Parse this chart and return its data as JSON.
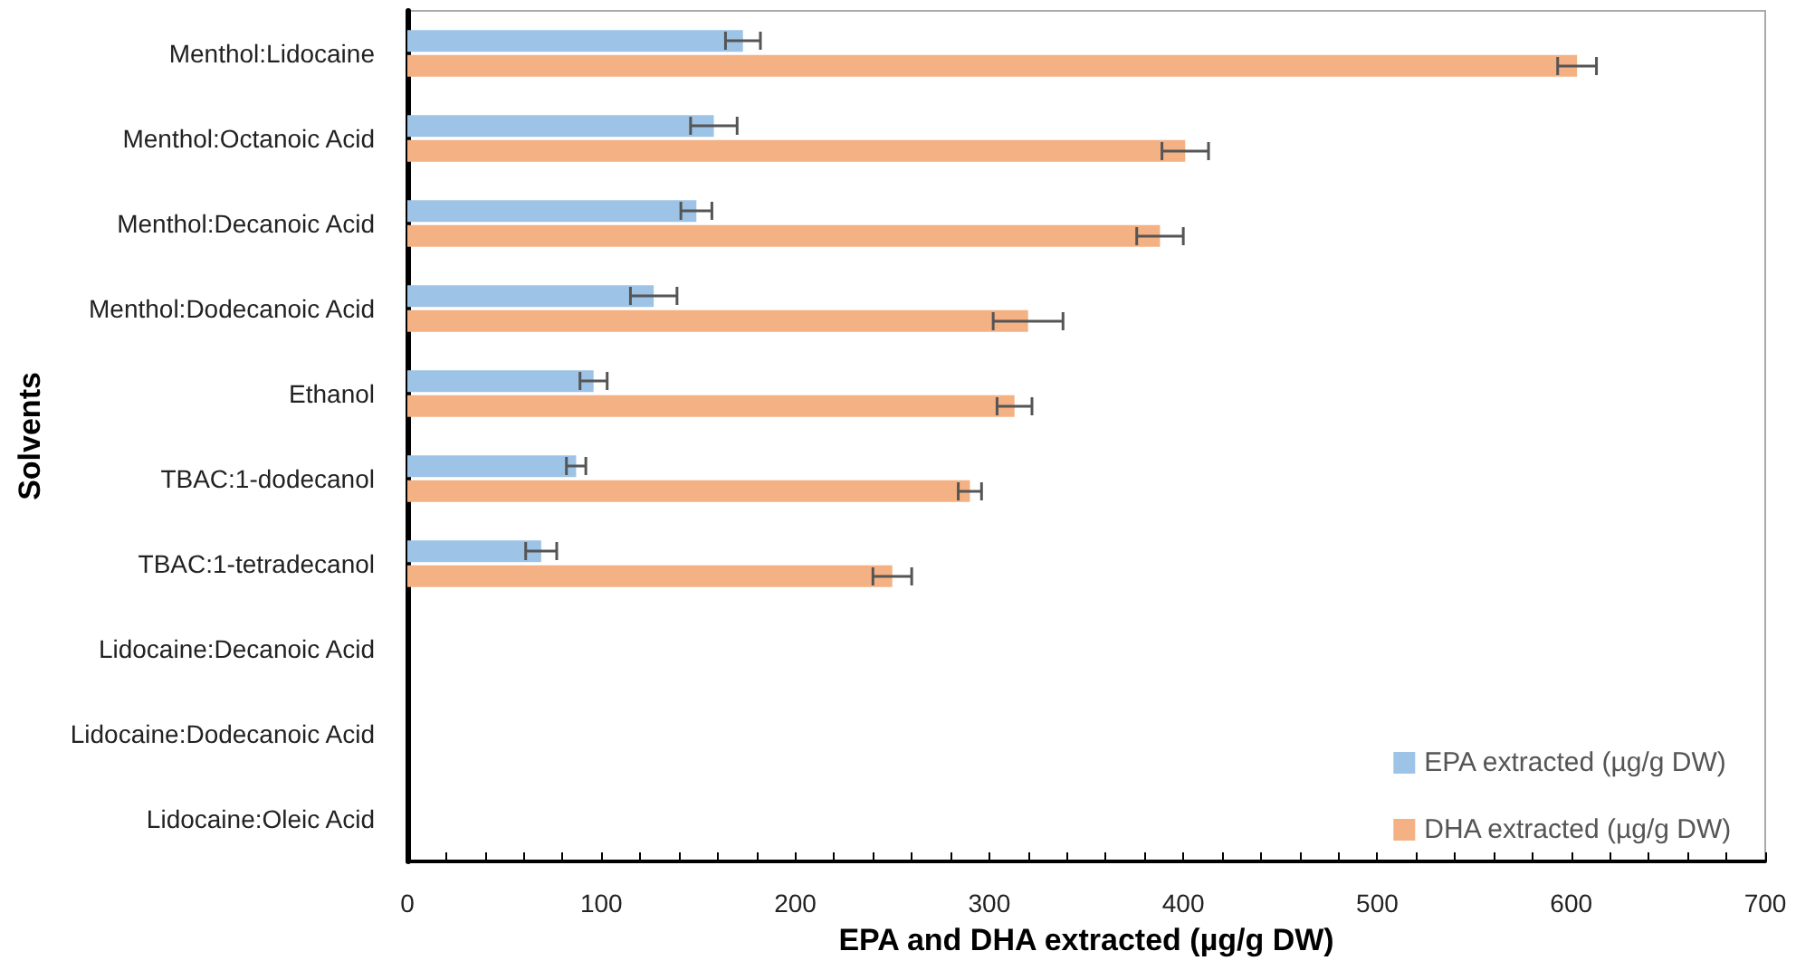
{
  "chart_data": {
    "type": "bar",
    "orientation": "horizontal",
    "xlabel": "EPA and DHA extracted (µg/g DW)",
    "ylabel": "Solvents",
    "categories": [
      "Menthol:Lidocaine",
      "Menthol:Octanoic Acid",
      "Menthol:Decanoic Acid",
      "Menthol:Dodecanoic Acid",
      "Ethanol",
      "TBAC:1-dodecanol",
      "TBAC:1-tetradecanol",
      "Lidocaine:Decanoic Acid",
      "Lidocaine:Dodecanoic Acid",
      "Lidocaine:Oleic Acid"
    ],
    "series": [
      {
        "name": "EPA extracted (µg/g DW)",
        "color": "#9dc3e6",
        "values": [
          173,
          158,
          149,
          127,
          96,
          87,
          69,
          0,
          0,
          0
        ],
        "errors": [
          9,
          12,
          8,
          12,
          7,
          5,
          8,
          null,
          null,
          null
        ]
      },
      {
        "name": "DHA extracted (µg/g DW)",
        "color": "#f4b183",
        "values": [
          603,
          401,
          388,
          320,
          313,
          290,
          250,
          0,
          0,
          0
        ],
        "errors": [
          10,
          12,
          12,
          18,
          9,
          6,
          10,
          null,
          null,
          null
        ]
      }
    ],
    "xlim": [
      0,
      700
    ],
    "xticks": [
      0,
      {
        "value": 20,
        "label": null
      },
      {
        "value": 40,
        "label": null
      },
      {
        "value": 60,
        "label": null
      },
      {
        "value": 80,
        "label": null
      },
      100,
      {
        "value": 120,
        "label": null
      },
      {
        "value": 140,
        "label": null
      },
      {
        "value": 160,
        "label": null
      },
      {
        "value": 180,
        "label": null
      },
      200,
      {
        "value": 220,
        "label": null
      },
      {
        "value": 240,
        "label": null
      },
      {
        "value": 260,
        "label": null
      },
      {
        "value": 280,
        "label": null
      },
      300,
      {
        "value": 320,
        "label": null
      },
      {
        "value": 340,
        "label": null
      },
      {
        "value": 360,
        "label": null
      },
      {
        "value": 380,
        "label": null
      },
      400,
      {
        "value": 420,
        "label": null
      },
      {
        "value": 440,
        "label": null
      },
      {
        "value": 460,
        "label": null
      },
      {
        "value": 480,
        "label": null
      },
      500,
      {
        "value": 520,
        "label": null
      },
      {
        "value": 540,
        "label": null
      },
      {
        "value": 560,
        "label": null
      },
      {
        "value": 580,
        "label": null
      },
      600,
      {
        "value": 620,
        "label": null
      },
      {
        "value": 640,
        "label": null
      },
      {
        "value": 660,
        "label": null
      },
      {
        "value": 680,
        "label": null
      },
      700
    ],
    "grid": false,
    "legend": "bottom right"
  }
}
